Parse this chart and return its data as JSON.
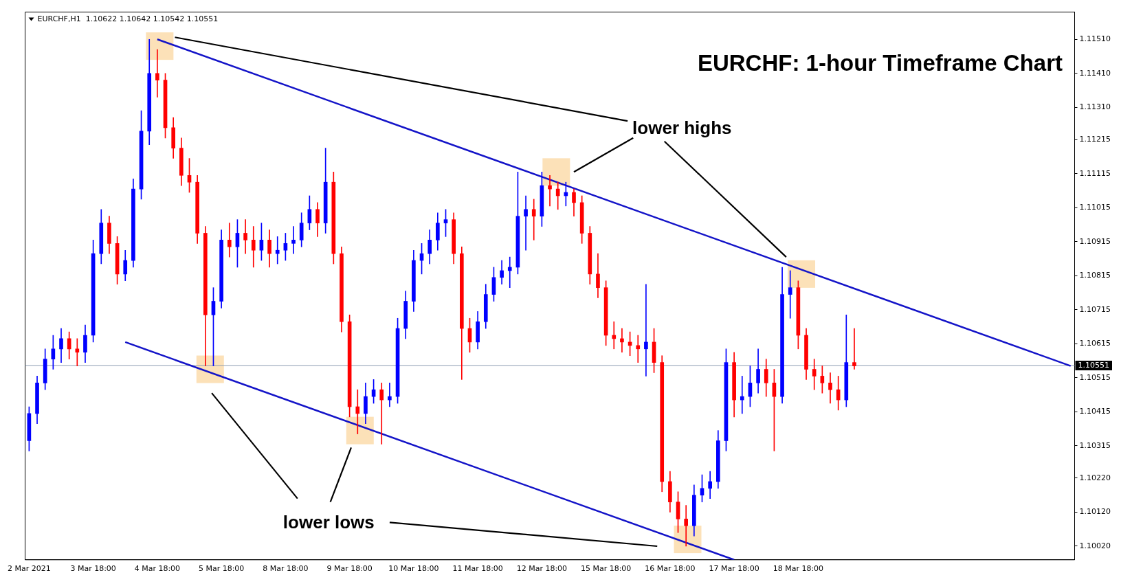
{
  "chart_data": {
    "type": "candlestick",
    "title": "EURCHF: 1-hour Timeframe Chart",
    "annotations": [
      "EURCHF,H1  1.10622 1.10642 1.10542 1.10551",
      "lower highs",
      "lower lows"
    ],
    "categories": [
      "2 Mar 2021",
      null,
      null,
      null,
      null,
      null,
      null,
      null,
      "3 Mar 18:00",
      null,
      null,
      null,
      null,
      null,
      null,
      null,
      "4 Mar 18:00",
      null,
      null,
      null,
      null,
      null,
      null,
      null,
      "5 Mar 18:00",
      null,
      null,
      null,
      null,
      null,
      null,
      null,
      "8 Mar 18:00",
      null,
      null,
      null,
      null,
      null,
      null,
      null,
      "9 Mar 18:00",
      null,
      null,
      null,
      null,
      null,
      null,
      null,
      "10 Mar 18:00",
      null,
      null,
      null,
      null,
      null,
      null,
      null,
      "11 Mar 18:00",
      null,
      null,
      null,
      null,
      null,
      null,
      null,
      "12 Mar 18:00",
      null,
      null,
      null,
      null,
      null,
      null,
      null,
      "15 Mar 18:00",
      null,
      null,
      null,
      null,
      null,
      null,
      null,
      "16 Mar 18:00",
      null,
      null,
      null,
      null,
      null,
      null,
      null,
      "17 Mar 18:00",
      null,
      null,
      null,
      null,
      null,
      null,
      null,
      "18 Mar 18:00",
      null,
      null,
      null,
      null,
      null,
      null,
      null,
      null,
      null,
      null,
      null,
      null,
      null,
      null,
      null,
      null,
      null,
      null,
      null,
      null,
      null,
      null,
      null,
      null,
      null,
      null,
      null,
      null,
      null,
      null,
      null,
      null,
      null,
      null
    ],
    "ohlc": [
      [
        1.1033,
        1.1043,
        1.103,
        1.1041
      ],
      [
        1.1041,
        1.1052,
        1.1038,
        1.105
      ],
      [
        1.105,
        1.106,
        1.1048,
        1.1057
      ],
      [
        1.1057,
        1.1064,
        1.1054,
        1.106
      ],
      [
        1.106,
        1.1066,
        1.1056,
        1.1063
      ],
      [
        1.1063,
        1.1065,
        1.1057,
        1.106
      ],
      [
        1.106,
        1.1063,
        1.1055,
        1.1059
      ],
      [
        1.1059,
        1.1067,
        1.1056,
        1.1064
      ],
      [
        1.1064,
        1.1092,
        1.1062,
        1.1088
      ],
      [
        1.1088,
        1.1101,
        1.1085,
        1.1097
      ],
      [
        1.1097,
        1.1099,
        1.1088,
        1.1091
      ],
      [
        1.1091,
        1.1093,
        1.1079,
        1.1082
      ],
      [
        1.1082,
        1.1089,
        1.108,
        1.1086
      ],
      [
        1.1086,
        1.111,
        1.1084,
        1.1107
      ],
      [
        1.1107,
        1.113,
        1.1104,
        1.1124
      ],
      [
        1.1124,
        1.1151,
        1.112,
        1.1141
      ],
      [
        1.1141,
        1.1148,
        1.1134,
        1.1139
      ],
      [
        1.1139,
        1.1141,
        1.1122,
        1.1125
      ],
      [
        1.1125,
        1.1128,
        1.1116,
        1.1119
      ],
      [
        1.1119,
        1.1122,
        1.1108,
        1.1111
      ],
      [
        1.1111,
        1.1116,
        1.1106,
        1.1109
      ],
      [
        1.1109,
        1.1111,
        1.1091,
        1.1094
      ],
      [
        1.1094,
        1.1096,
        1.1055,
        1.107
      ],
      [
        1.107,
        1.1078,
        1.1055,
        1.1074
      ],
      [
        1.1074,
        1.1095,
        1.1072,
        1.1092
      ],
      [
        1.1092,
        1.1097,
        1.1087,
        1.109
      ],
      [
        1.109,
        1.1098,
        1.1084,
        1.1094
      ],
      [
        1.1094,
        1.1098,
        1.1088,
        1.1092
      ],
      [
        1.1092,
        1.1096,
        1.1084,
        1.1089
      ],
      [
        1.1089,
        1.1097,
        1.1086,
        1.1092
      ],
      [
        1.1092,
        1.1095,
        1.1084,
        1.1088
      ],
      [
        1.1088,
        1.1093,
        1.1085,
        1.1089
      ],
      [
        1.1089,
        1.1094,
        1.1086,
        1.1091
      ],
      [
        1.1091,
        1.1096,
        1.1088,
        1.1092
      ],
      [
        1.1092,
        1.11,
        1.109,
        1.1097
      ],
      [
        1.1097,
        1.1105,
        1.1095,
        1.1101
      ],
      [
        1.1101,
        1.1103,
        1.1093,
        1.1097
      ],
      [
        1.1097,
        1.1119,
        1.1094,
        1.1109
      ],
      [
        1.1109,
        1.1112,
        1.1085,
        1.1088
      ],
      [
        1.1088,
        1.109,
        1.1065,
        1.1068
      ],
      [
        1.1068,
        1.107,
        1.104,
        1.1043
      ],
      [
        1.1043,
        1.1048,
        1.1035,
        1.1041
      ],
      [
        1.1041,
        1.105,
        1.1038,
        1.1046
      ],
      [
        1.1046,
        1.1051,
        1.1044,
        1.1048
      ],
      [
        1.1048,
        1.105,
        1.1032,
        1.1045
      ],
      [
        1.1045,
        1.105,
        1.1043,
        1.1046
      ],
      [
        1.1046,
        1.1069,
        1.1044,
        1.1066
      ],
      [
        1.1066,
        1.1077,
        1.1063,
        1.1074
      ],
      [
        1.1074,
        1.1089,
        1.1071,
        1.1086
      ],
      [
        1.1086,
        1.1091,
        1.1082,
        1.1088
      ],
      [
        1.1088,
        1.1095,
        1.1085,
        1.1092
      ],
      [
        1.1092,
        1.11,
        1.1089,
        1.1097
      ],
      [
        1.1097,
        1.1101,
        1.1093,
        1.1098
      ],
      [
        1.1098,
        1.11,
        1.1085,
        1.1088
      ],
      [
        1.1088,
        1.109,
        1.1051,
        1.1066
      ],
      [
        1.1066,
        1.1069,
        1.1059,
        1.1062
      ],
      [
        1.1062,
        1.1071,
        1.106,
        1.1068
      ],
      [
        1.1068,
        1.1079,
        1.1066,
        1.1076
      ],
      [
        1.1076,
        1.1084,
        1.1074,
        1.1081
      ],
      [
        1.1081,
        1.1086,
        1.1079,
        1.1083
      ],
      [
        1.1083,
        1.1087,
        1.1078,
        1.1084
      ],
      [
        1.1084,
        1.1112,
        1.1082,
        1.1099
      ],
      [
        1.1099,
        1.1105,
        1.1089,
        1.1101
      ],
      [
        1.1101,
        1.1104,
        1.1092,
        1.1099
      ],
      [
        1.1099,
        1.1112,
        1.1096,
        1.1108
      ],
      [
        1.1108,
        1.1111,
        1.1102,
        1.1107
      ],
      [
        1.1107,
        1.1109,
        1.1101,
        1.1105
      ],
      [
        1.1105,
        1.1109,
        1.1102,
        1.1106
      ],
      [
        1.1106,
        1.1107,
        1.1099,
        1.1103
      ],
      [
        1.1103,
        1.1105,
        1.1091,
        1.1094
      ],
      [
        1.1094,
        1.1096,
        1.1079,
        1.1082
      ],
      [
        1.1082,
        1.1088,
        1.1075,
        1.1078
      ],
      [
        1.1078,
        1.108,
        1.1061,
        1.1064
      ],
      [
        1.1064,
        1.1068,
        1.106,
        1.1063
      ],
      [
        1.1063,
        1.1066,
        1.1059,
        1.1062
      ],
      [
        1.1062,
        1.1065,
        1.1058,
        1.1061
      ],
      [
        1.1061,
        1.1064,
        1.1056,
        1.106
      ],
      [
        1.106,
        1.1079,
        1.1052,
        1.1062
      ],
      [
        1.1062,
        1.1066,
        1.1053,
        1.1056
      ],
      [
        1.1056,
        1.1058,
        1.1018,
        1.1021
      ],
      [
        1.1021,
        1.1024,
        1.1012,
        1.1015
      ],
      [
        1.1015,
        1.1018,
        1.1006,
        1.101
      ],
      [
        1.101,
        1.1014,
        1.1002,
        1.1008
      ],
      [
        1.1008,
        1.102,
        1.1005,
        1.1017
      ],
      [
        1.1017,
        1.1023,
        1.1015,
        1.1019
      ],
      [
        1.1019,
        1.1024,
        1.1016,
        1.1021
      ],
      [
        1.1021,
        1.1036,
        1.1019,
        1.1033
      ],
      [
        1.1033,
        1.106,
        1.103,
        1.1056
      ],
      [
        1.1056,
        1.1059,
        1.104,
        1.1045
      ],
      [
        1.1045,
        1.1052,
        1.1041,
        1.1046
      ],
      [
        1.1046,
        1.1055,
        1.1043,
        1.105
      ],
      [
        1.105,
        1.106,
        1.1047,
        1.1054
      ],
      [
        1.1054,
        1.1057,
        1.1046,
        1.105
      ],
      [
        1.105,
        1.1054,
        1.103,
        1.1046
      ],
      [
        1.1046,
        1.1084,
        1.1044,
        1.1076
      ],
      [
        1.1076,
        1.1083,
        1.1069,
        1.1078
      ],
      [
        1.1078,
        1.108,
        1.106,
        1.1064
      ],
      [
        1.1064,
        1.1066,
        1.1051,
        1.1054
      ],
      [
        1.1054,
        1.1057,
        1.1048,
        1.1052
      ],
      [
        1.1052,
        1.1055,
        1.1047,
        1.105
      ],
      [
        1.105,
        1.1053,
        1.1044,
        1.1048
      ],
      [
        1.1048,
        1.1052,
        1.1042,
        1.1045
      ],
      [
        1.1045,
        1.107,
        1.1043,
        1.1056
      ],
      [
        1.1056,
        1.1066,
        1.1054,
        1.1055
      ],
      null,
      null,
      null,
      null,
      null,
      null,
      null,
      null,
      null,
      null,
      null,
      null,
      null,
      null,
      null,
      null,
      null,
      null,
      null,
      null,
      null,
      null,
      null,
      null,
      null,
      null,
      null
    ],
    "colors": [
      "#0000ff",
      "#0000ff",
      "#0000ff",
      "#0000ff",
      "#0000ff",
      "#ff0000",
      "#ff0000",
      "#0000ff",
      "#0000ff",
      "#0000ff",
      "#ff0000",
      "#ff0000",
      "#0000ff",
      "#0000ff",
      "#0000ff",
      "#0000ff",
      "#ff0000",
      "#ff0000",
      "#ff0000",
      "#ff0000",
      "#ff0000",
      "#ff0000",
      "#ff0000",
      "#0000ff",
      "#0000ff",
      "#ff0000",
      "#0000ff",
      "#ff0000",
      "#ff0000",
      "#0000ff",
      "#ff0000",
      "#0000ff",
      "#0000ff",
      "#0000ff",
      "#0000ff",
      "#0000ff",
      "#ff0000",
      "#0000ff",
      "#ff0000",
      "#ff0000",
      "#ff0000",
      "#ff0000",
      "#0000ff",
      "#0000ff",
      "#ff0000",
      "#0000ff",
      "#0000ff",
      "#0000ff",
      "#0000ff",
      "#0000ff",
      "#0000ff",
      "#0000ff",
      "#0000ff",
      "#ff0000",
      "#ff0000",
      "#ff0000",
      "#0000ff",
      "#0000ff",
      "#0000ff",
      "#0000ff",
      "#0000ff",
      "#0000ff",
      "#0000ff",
      "#ff0000",
      "#0000ff",
      "#ff0000",
      "#ff0000",
      "#0000ff",
      "#ff0000",
      "#ff0000",
      "#ff0000",
      "#ff0000",
      "#ff0000",
      "#ff0000",
      "#ff0000",
      "#ff0000",
      "#ff0000",
      "#0000ff",
      "#ff0000",
      "#ff0000",
      "#ff0000",
      "#ff0000",
      "#ff0000",
      "#0000ff",
      "#0000ff",
      "#0000ff",
      "#0000ff",
      "#0000ff",
      "#ff0000",
      "#0000ff",
      "#0000ff",
      "#0000ff",
      "#ff0000",
      "#ff0000",
      "#0000ff",
      "#0000ff",
      "#ff0000",
      "#ff0000",
      "#ff0000",
      "#ff0000",
      "#ff0000",
      "#ff0000",
      "#0000ff",
      "#ff0000",
      null,
      null,
      null,
      null,
      null,
      null,
      null,
      null,
      null,
      null,
      null,
      null,
      null,
      null,
      null,
      null,
      null,
      null,
      null,
      null,
      null,
      null,
      null,
      null,
      null,
      null,
      null
    ],
    "series": [
      {
        "type": "line",
        "color": "#1414c8",
        "values": [
          null,
          null,
          null,
          null,
          null,
          null,
          null,
          null,
          null,
          null,
          null,
          null,
          null,
          null,
          null,
          null,
          1.1151,
          null,
          null,
          null,
          null,
          null,
          null,
          null,
          null,
          null,
          null,
          null,
          null,
          null,
          null,
          null,
          null,
          null,
          null,
          null,
          null,
          null,
          null,
          null,
          null,
          null,
          null,
          null,
          null,
          null,
          null,
          null,
          null,
          null,
          null,
          null,
          null,
          null,
          null,
          null,
          null,
          null,
          null,
          null,
          null,
          null,
          null,
          null,
          null,
          null,
          null,
          null,
          null,
          null,
          null,
          null,
          null,
          null,
          null,
          null,
          null,
          null,
          null,
          null,
          null,
          null,
          null,
          null,
          null,
          null,
          null,
          null,
          null,
          null,
          null,
          null,
          null,
          null,
          null,
          null,
          null,
          null,
          null,
          null,
          null,
          null,
          null,
          null,
          null,
          null,
          null,
          null,
          null,
          null,
          null,
          null,
          null,
          null,
          null,
          null,
          null,
          null,
          null,
          null,
          null,
          null,
          null,
          null,
          null,
          null,
          null,
          null,
          null,
          null,
          1.1055
        ]
      },
      {
        "type": "line",
        "color": "#1414c8",
        "values": [
          null,
          null,
          null,
          null,
          null,
          null,
          null,
          null,
          null,
          null,
          null,
          null,
          1.1062,
          null,
          null,
          null,
          null,
          null,
          null,
          null,
          null,
          null,
          null,
          null,
          null,
          null,
          null,
          null,
          null,
          null,
          null,
          null,
          null,
          null,
          null,
          null,
          null,
          null,
          null,
          null,
          null,
          null,
          null,
          null,
          null,
          null,
          null,
          null,
          null,
          null,
          null,
          null,
          null,
          null,
          null,
          null,
          null,
          null,
          null,
          null,
          null,
          null,
          null,
          null,
          null,
          null,
          null,
          null,
          null,
          null,
          null,
          null,
          null,
          null,
          null,
          null,
          null,
          null,
          null,
          null,
          null,
          null,
          null,
          null,
          null,
          null,
          null,
          null,
          1.0998,
          null,
          null,
          null,
          null,
          null,
          null,
          null,
          null,
          null,
          null,
          null,
          null,
          null,
          null,
          null,
          null,
          null,
          null,
          null,
          null,
          null,
          null,
          null,
          null,
          null,
          null,
          null,
          null,
          null,
          null,
          null,
          null,
          null,
          null,
          null,
          null,
          null,
          null,
          null,
          null,
          null,
          null
        ]
      }
    ],
    "ref_lines": [
      {
        "axis": "y",
        "value": 1.10551,
        "label": "1.10551",
        "color": "#8a9ab0"
      }
    ],
    "ylim": [
      1.0998,
      1.1159
    ],
    "yticks": [
      {
        "value": 1.1151,
        "label": "1.11510"
      },
      {
        "value": 1.1141,
        "label": "1.11410"
      },
      {
        "value": 1.1131,
        "label": "1.11310"
      },
      {
        "value": 1.11215,
        "label": "1.11215"
      },
      {
        "value": 1.11115,
        "label": "1.11115"
      },
      {
        "value": 1.11015,
        "label": "1.11015"
      },
      {
        "value": 1.10915,
        "label": "1.10915"
      },
      {
        "value": 1.10815,
        "label": "1.10815"
      },
      {
        "value": 1.10715,
        "label": "1.10715"
      },
      {
        "value": 1.10615,
        "label": "1.10615"
      },
      {
        "value": 1.10515,
        "label": "1.10515"
      },
      {
        "value": 1.10415,
        "label": "1.10415"
      },
      {
        "value": 1.10315,
        "label": "1.10315"
      },
      {
        "value": 1.1022,
        "label": "1.10220"
      },
      {
        "value": 1.1012,
        "label": "1.10120"
      },
      {
        "value": 1.1002,
        "label": "1.10020"
      }
    ],
    "grid": false,
    "legend": false
  }
}
